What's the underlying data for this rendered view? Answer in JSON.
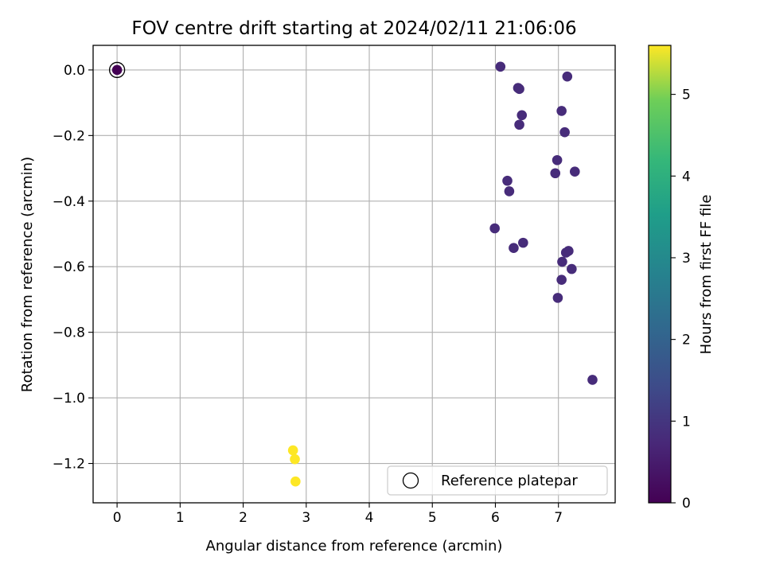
{
  "chart_data": {
    "type": "scatter",
    "title": "FOV centre drift starting at 2024/02/11 21:06:06",
    "xlabel": "Angular distance from reference (arcmin)",
    "ylabel": "Rotation from reference (arcmin)",
    "xlim": [
      -0.38,
      7.9
    ],
    "ylim": [
      -1.32,
      0.075
    ],
    "xticks": [
      0,
      1,
      2,
      3,
      4,
      5,
      6,
      7
    ],
    "yticks": [
      0.0,
      -0.2,
      -0.4,
      -0.6,
      -0.8,
      -1.0,
      -1.2
    ],
    "xtick_labels": [
      "0",
      "1",
      "2",
      "3",
      "4",
      "5",
      "6",
      "7"
    ],
    "ytick_labels": [
      "0.0",
      "−0.2",
      "−0.4",
      "−0.6",
      "−0.8",
      "−1.0",
      "−1.2"
    ],
    "grid": true,
    "legend": {
      "placement": "lower-right",
      "entries": [
        "Reference platepar"
      ]
    },
    "colorbar": {
      "label": "Hours from first FF file",
      "range": [
        0,
        5.6
      ],
      "ticks": [
        0,
        1,
        2,
        3,
        4,
        5
      ],
      "tick_labels": [
        "0",
        "1",
        "2",
        "3",
        "4",
        "5"
      ],
      "colormap": "viridis"
    },
    "reference_point": {
      "x": 0.0,
      "y": 0.0,
      "hours": 0.0
    },
    "points": [
      {
        "x": 0.0,
        "y": 0.0,
        "hours": 0.0
      },
      {
        "x": 6.08,
        "y": 0.01,
        "hours": 0.7
      },
      {
        "x": 7.14,
        "y": -0.02,
        "hours": 0.7
      },
      {
        "x": 6.36,
        "y": -0.055,
        "hours": 0.7
      },
      {
        "x": 6.38,
        "y": -0.058,
        "hours": 0.7
      },
      {
        "x": 7.05,
        "y": -0.125,
        "hours": 0.7
      },
      {
        "x": 6.42,
        "y": -0.138,
        "hours": 0.7
      },
      {
        "x": 6.38,
        "y": -0.167,
        "hours": 0.7
      },
      {
        "x": 7.1,
        "y": -0.19,
        "hours": 0.7
      },
      {
        "x": 6.98,
        "y": -0.275,
        "hours": 0.7
      },
      {
        "x": 6.95,
        "y": -0.315,
        "hours": 0.7
      },
      {
        "x": 7.26,
        "y": -0.31,
        "hours": 0.7
      },
      {
        "x": 6.19,
        "y": -0.338,
        "hours": 0.7
      },
      {
        "x": 6.22,
        "y": -0.37,
        "hours": 0.7
      },
      {
        "x": 5.99,
        "y": -0.483,
        "hours": 0.7
      },
      {
        "x": 6.44,
        "y": -0.527,
        "hours": 0.7
      },
      {
        "x": 6.29,
        "y": -0.543,
        "hours": 0.7
      },
      {
        "x": 7.16,
        "y": -0.552,
        "hours": 0.7
      },
      {
        "x": 7.12,
        "y": -0.557,
        "hours": 0.7
      },
      {
        "x": 7.06,
        "y": -0.585,
        "hours": 0.7
      },
      {
        "x": 7.21,
        "y": -0.607,
        "hours": 0.7
      },
      {
        "x": 7.05,
        "y": -0.64,
        "hours": 0.7
      },
      {
        "x": 6.99,
        "y": -0.695,
        "hours": 0.7
      },
      {
        "x": 7.54,
        "y": -0.945,
        "hours": 0.7
      },
      {
        "x": 2.79,
        "y": -1.16,
        "hours": 5.6
      },
      {
        "x": 2.82,
        "y": -1.187,
        "hours": 5.6
      },
      {
        "x": 2.83,
        "y": -1.255,
        "hours": 5.6
      }
    ]
  }
}
